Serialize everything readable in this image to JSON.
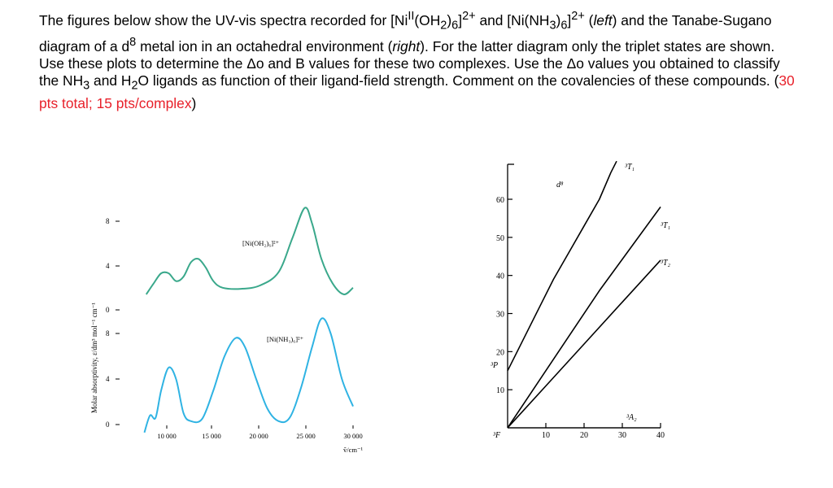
{
  "question": {
    "seg1": "The figures below show the UV-vis spectra recorded for [Ni",
    "seg1_sup": "II",
    "seg2": "(OH",
    "seg2_sub": "2",
    "seg3": ")",
    "seg3_sub": "6",
    "seg4": "]",
    "seg4_sup": "2+",
    "seg5": " and [Ni(NH",
    "seg5_sub": "3",
    "seg6": ")",
    "seg6_sub": "6",
    "seg7": "]",
    "seg7_sup": "2+",
    "seg8": " (",
    "left_word": "left",
    "seg9": ") and the Tanabe-Sugano diagram of a d",
    "seg9_sup": "8",
    "seg10": " metal ion in an octahedral environment (",
    "right_word": "right",
    "seg11": "). For the latter diagram only the triplet states are shown. Use these plots to determine the Δo and B values for these two complexes. Use the Δo values you obtained to classify the NH",
    "seg11_sub": "3",
    "seg12": " and H",
    "seg12_sub": "2",
    "seg13": "O ligands as function of their ligand-field strength. Comment on the covalencies of these compounds. (",
    "points_red": "30 pts total; 15 pts/complex",
    "seg14": ")"
  },
  "spectra": {
    "ylabel": "Molar absorptivity, ε/dm³ mol⁻¹ cm⁻¹",
    "xlabel": "ṽ/cm⁻¹",
    "x_ticks": [
      "10 000",
      "15 000",
      "20 000",
      "25 000",
      "30 000"
    ],
    "upper_y_ticks": [
      "0",
      "4",
      "8"
    ],
    "lower_y_ticks": [
      "0",
      "4",
      "8"
    ],
    "upper_label": "[Ni(OH₂)₆]²⁺",
    "lower_label": "[Ni(NH₃)₆]²⁺",
    "upper_color": "#3aa88b",
    "lower_color": "#2fb3e3",
    "upper_points": [
      [
        7800,
        1.4
      ],
      [
        8600,
        2.4
      ],
      [
        9400,
        3.3
      ],
      [
        10200,
        3.3
      ],
      [
        11000,
        2.6
      ],
      [
        11800,
        3.0
      ],
      [
        12600,
        4.3
      ],
      [
        13400,
        4.6
      ],
      [
        14200,
        3.8
      ],
      [
        15000,
        2.6
      ],
      [
        16000,
        2.0
      ],
      [
        18000,
        1.9
      ],
      [
        20000,
        2.2
      ],
      [
        22000,
        3.4
      ],
      [
        23500,
        6.5
      ],
      [
        24800,
        9.2
      ],
      [
        25600,
        7.8
      ],
      [
        26600,
        4.6
      ],
      [
        27800,
        2.4
      ],
      [
        29000,
        1.4
      ],
      [
        30000,
        2.0
      ]
    ],
    "lower_points": [
      [
        7600,
        -0.7
      ],
      [
        8200,
        0.8
      ],
      [
        8800,
        0.6
      ],
      [
        9400,
        3.0
      ],
      [
        10200,
        5.0
      ],
      [
        11000,
        4.0
      ],
      [
        11800,
        1.0
      ],
      [
        12600,
        0.3
      ],
      [
        13800,
        0.5
      ],
      [
        15000,
        3.0
      ],
      [
        16200,
        6.0
      ],
      [
        17400,
        7.6
      ],
      [
        18400,
        6.8
      ],
      [
        19600,
        4.0
      ],
      [
        20800,
        1.4
      ],
      [
        22000,
        0.3
      ],
      [
        23200,
        0.6
      ],
      [
        24400,
        3.2
      ],
      [
        25600,
        6.8
      ],
      [
        26600,
        9.3
      ],
      [
        27600,
        8.0
      ],
      [
        28800,
        4.0
      ],
      [
        30000,
        1.6
      ]
    ]
  },
  "tanabe_sugano": {
    "label": "d⁸",
    "y_ticks": [
      "60",
      "50",
      "40",
      "30",
      "20",
      "10"
    ],
    "x_ticks": [
      "10",
      "20",
      "30",
      "40"
    ],
    "ground_label": "³F",
    "p_label": "³P",
    "curves": [
      {
        "label": "³T₁",
        "points": [
          [
            0,
            15
          ],
          [
            4,
            23
          ],
          [
            8,
            31
          ],
          [
            12,
            39
          ],
          [
            16,
            46
          ],
          [
            20,
            53
          ],
          [
            24,
            60
          ],
          [
            27,
            67
          ],
          [
            28.5,
            70
          ]
        ]
      },
      {
        "label": "³T₁",
        "points": [
          [
            0,
            0
          ],
          [
            8,
            12
          ],
          [
            16,
            24
          ],
          [
            24,
            36
          ],
          [
            32,
            47
          ],
          [
            40,
            58
          ]
        ]
      },
      {
        "label": "³T₂",
        "points": [
          [
            0,
            0
          ],
          [
            10,
            11
          ],
          [
            20,
            22
          ],
          [
            30,
            33
          ],
          [
            40,
            44
          ]
        ]
      },
      {
        "label": "³A₂",
        "points": [
          [
            0,
            0
          ],
          [
            40,
            0
          ]
        ]
      }
    ]
  }
}
